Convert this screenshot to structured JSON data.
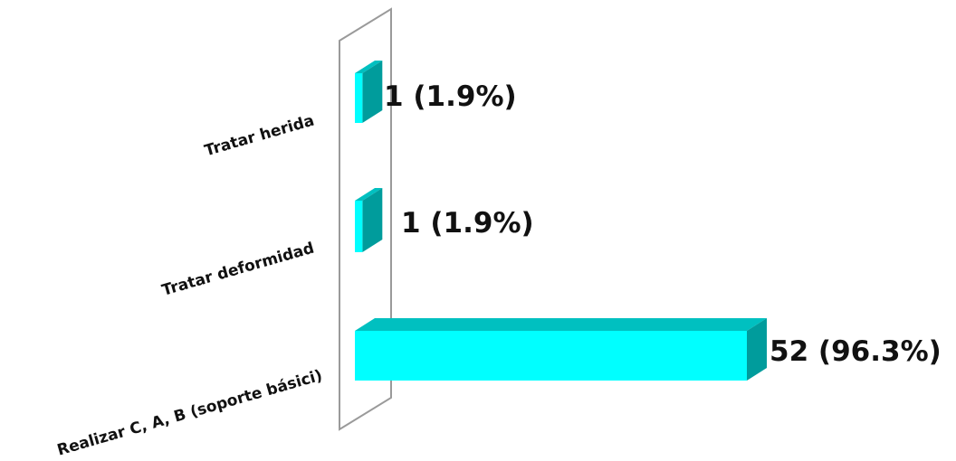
{
  "chart_data": {
    "type": "bar",
    "orientation": "horizontal",
    "three_d": true,
    "categories": [
      "Tratar herida",
      "Tratar deformidad",
      "Realizar C, A, B (soporte básici)"
    ],
    "values": [
      1,
      1,
      52
    ],
    "data_labels": [
      "1 (1.9%)",
      "1 (1.9%)",
      "52 (96.3%)"
    ],
    "xlim": [
      0,
      52
    ],
    "grid": false,
    "legend": "none"
  },
  "colors": {
    "bar_front": "#00FFFF",
    "bar_top": "#00C0C0",
    "bar_side": "#009C9C",
    "wall": "#9a9a9a"
  }
}
